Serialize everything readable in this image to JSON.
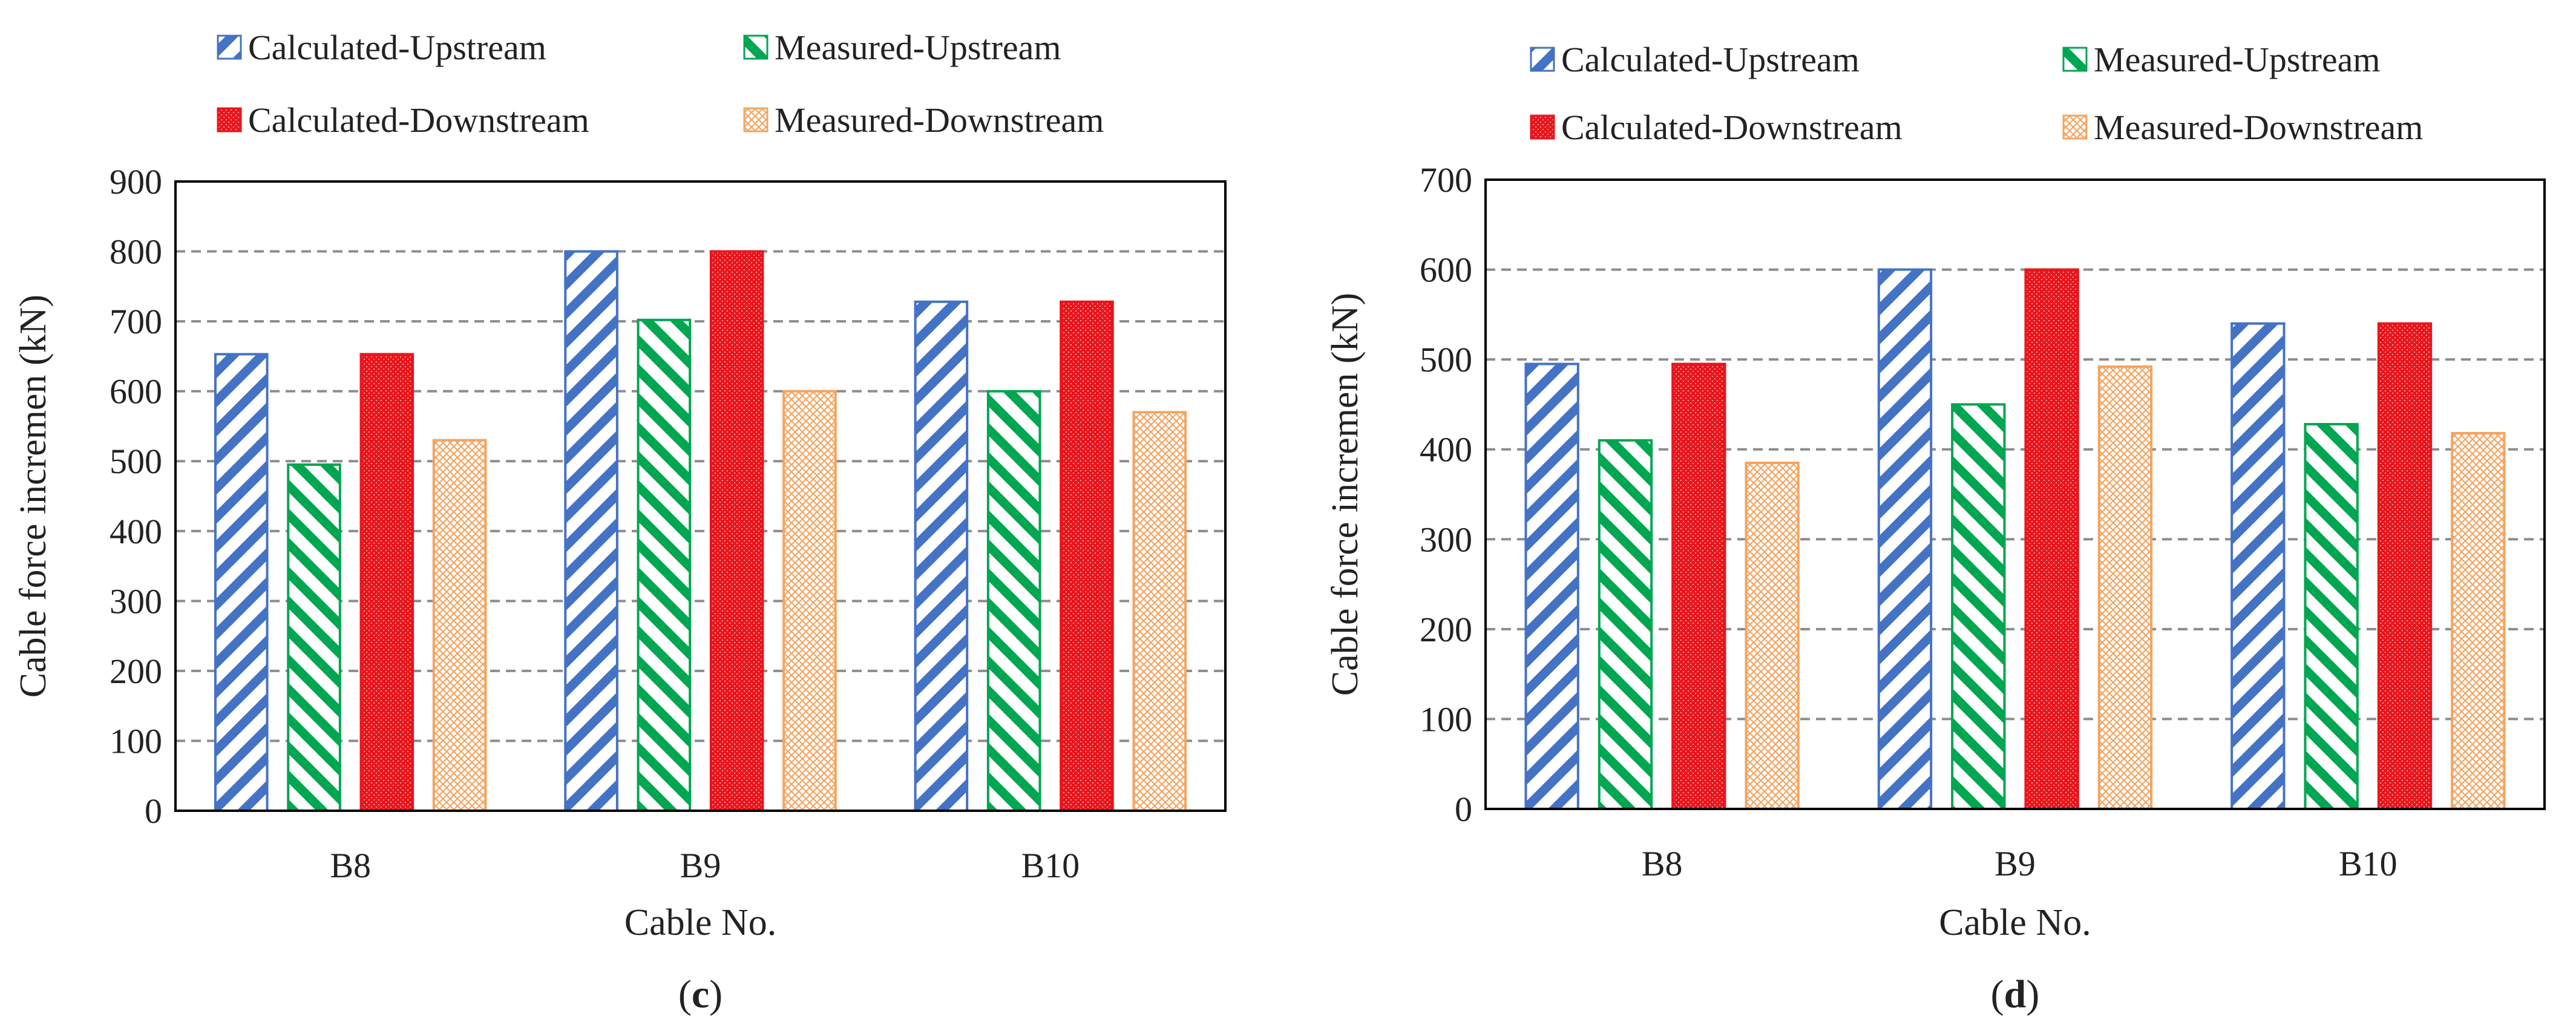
{
  "colors": {
    "calc_up": "#4472C4",
    "meas_up": "#00A651",
    "calc_down": "#E8161C",
    "meas_down": "#F4A460",
    "grid": "#8c8c8c",
    "axis": "#000000",
    "text": "#222222"
  },
  "chart_data": [
    {
      "type": "bar",
      "panel_label": "c",
      "title": "",
      "categories": [
        "B8",
        "B9",
        "B10"
      ],
      "series": [
        {
          "name": "Calculated-Upstream",
          "values": [
            653,
            800,
            728
          ]
        },
        {
          "name": "Measured-Upstream",
          "values": [
            495,
            702,
            600
          ]
        },
        {
          "name": "Calculated-Downstream",
          "values": [
            653,
            800,
            728
          ]
        },
        {
          "name": "Measured-Downstream",
          "values": [
            530,
            600,
            570
          ]
        }
      ],
      "xlabel": "Cable No.",
      "ylabel": "Cable force incremen (kN)",
      "ylim": [
        0,
        900
      ],
      "yticks": [
        0,
        100,
        200,
        300,
        400,
        500,
        600,
        700,
        800,
        900
      ],
      "grid": true,
      "legend": "top"
    },
    {
      "type": "bar",
      "panel_label": "d",
      "title": "",
      "categories": [
        "B8",
        "B9",
        "B10"
      ],
      "series": [
        {
          "name": "Calculated-Upstream",
          "values": [
            495,
            600,
            540
          ]
        },
        {
          "name": "Measured-Upstream",
          "values": [
            410,
            450,
            428
          ]
        },
        {
          "name": "Calculated-Downstream",
          "values": [
            495,
            600,
            540
          ]
        },
        {
          "name": "Measured-Downstream",
          "values": [
            385,
            492,
            418
          ]
        }
      ],
      "xlabel": "Cable No.",
      "ylabel": "Cable force incremen (kN)",
      "ylim": [
        0,
        700
      ],
      "yticks": [
        0,
        100,
        200,
        300,
        400,
        500,
        600,
        700
      ],
      "grid": true,
      "legend": "top"
    }
  ]
}
